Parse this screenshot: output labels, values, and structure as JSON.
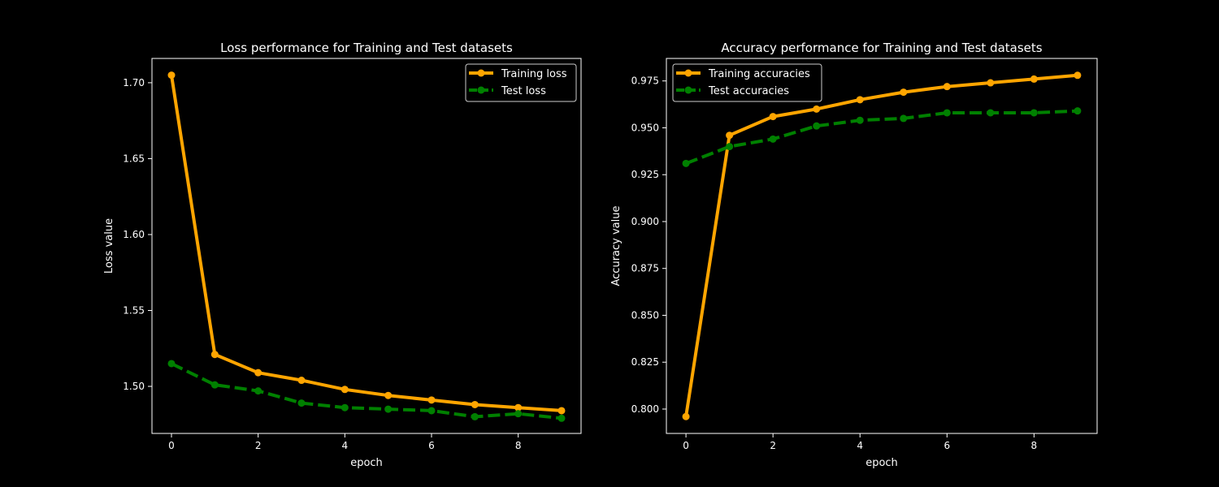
{
  "background": "#000000",
  "chart_data": [
    {
      "type": "line",
      "title": "Loss performance for Training and Test datasets",
      "xlabel": "epoch",
      "ylabel": "Loss value",
      "xlim": [
        -0.45,
        9.45
      ],
      "ylim": [
        1.469,
        1.716
      ],
      "xticks": [
        0,
        2,
        4,
        6,
        8
      ],
      "xtick_labels": [
        "0",
        "2",
        "4",
        "6",
        "8"
      ],
      "yticks": [
        1.5,
        1.55,
        1.6,
        1.65,
        1.7
      ],
      "ytick_labels": [
        "1.50",
        "1.55",
        "1.60",
        "1.65",
        "1.70"
      ],
      "grid": false,
      "legend": "top-right",
      "x": [
        0,
        1,
        2,
        3,
        4,
        5,
        6,
        7,
        8,
        9
      ],
      "series": [
        {
          "name": "Training loss",
          "color": "#ffa500",
          "dash": "solid",
          "values": [
            1.705,
            1.521,
            1.509,
            1.504,
            1.498,
            1.494,
            1.491,
            1.488,
            1.486,
            1.484
          ]
        },
        {
          "name": "Test loss",
          "color": "#008000",
          "dash": "dashed",
          "values": [
            1.515,
            1.501,
            1.497,
            1.489,
            1.486,
            1.485,
            1.484,
            1.48,
            1.482,
            1.479
          ]
        }
      ]
    },
    {
      "type": "line",
      "title": "Accuracy performance for Training and Test datasets",
      "xlabel": "epoch",
      "ylabel": "Accuracy value",
      "xlim": [
        -0.45,
        9.45
      ],
      "ylim": [
        0.787,
        0.987
      ],
      "xticks": [
        0,
        2,
        4,
        6,
        8
      ],
      "xtick_labels": [
        "0",
        "2",
        "4",
        "6",
        "8"
      ],
      "yticks": [
        0.8,
        0.825,
        0.85,
        0.875,
        0.9,
        0.925,
        0.95,
        0.975
      ],
      "ytick_labels": [
        "0.800",
        "0.825",
        "0.850",
        "0.875",
        "0.900",
        "0.925",
        "0.950",
        "0.975"
      ],
      "grid": false,
      "legend": "top-left",
      "x": [
        0,
        1,
        2,
        3,
        4,
        5,
        6,
        7,
        8,
        9
      ],
      "series": [
        {
          "name": "Training accuracies",
          "color": "#ffa500",
          "dash": "solid",
          "values": [
            0.796,
            0.946,
            0.956,
            0.96,
            0.965,
            0.969,
            0.972,
            0.974,
            0.976,
            0.978
          ]
        },
        {
          "name": "Test accuracies",
          "color": "#008000",
          "dash": "dashed",
          "values": [
            0.931,
            0.94,
            0.944,
            0.951,
            0.954,
            0.955,
            0.958,
            0.958,
            0.958,
            0.959
          ]
        }
      ]
    }
  ]
}
